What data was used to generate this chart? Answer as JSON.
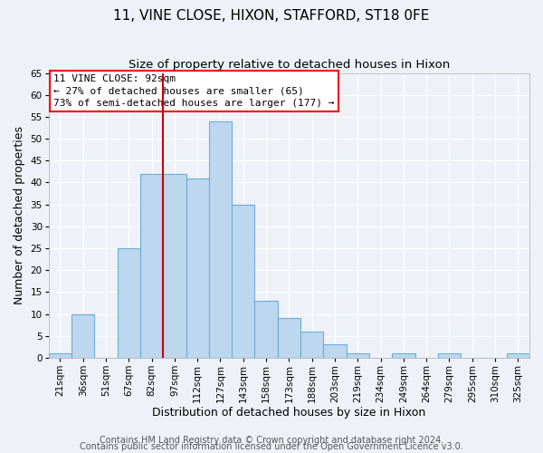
{
  "title": "11, VINE CLOSE, HIXON, STAFFORD, ST18 0FE",
  "subtitle": "Size of property relative to detached houses in Hixon",
  "xlabel": "Distribution of detached houses by size in Hixon",
  "ylabel": "Number of detached properties",
  "bin_labels": [
    "21sqm",
    "36sqm",
    "51sqm",
    "67sqm",
    "82sqm",
    "97sqm",
    "112sqm",
    "127sqm",
    "143sqm",
    "158sqm",
    "173sqm",
    "188sqm",
    "203sqm",
    "219sqm",
    "234sqm",
    "249sqm",
    "264sqm",
    "279sqm",
    "295sqm",
    "310sqm",
    "325sqm"
  ],
  "bin_centers": [
    21,
    36,
    51,
    67,
    82,
    97,
    112,
    127,
    143,
    158,
    173,
    188,
    203,
    219,
    234,
    249,
    264,
    279,
    295,
    310,
    325
  ],
  "bin_width": 15,
  "counts": [
    1,
    10,
    0,
    25,
    42,
    42,
    41,
    54,
    35,
    13,
    9,
    6,
    3,
    1,
    0,
    1,
    0,
    1,
    0,
    0,
    1
  ],
  "bar_color": "#bdd7ee",
  "bar_edge_color": "#6baed6",
  "vline_x": 97,
  "vline_color": "#cc0000",
  "annotation_box_text": "11 VINE CLOSE: 92sqm\n← 27% of detached houses are smaller (65)\n73% of semi-detached houses are larger (177) →",
  "ylim": [
    0,
    65
  ],
  "yticks": [
    0,
    5,
    10,
    15,
    20,
    25,
    30,
    35,
    40,
    45,
    50,
    55,
    60,
    65
  ],
  "footer_line1": "Contains HM Land Registry data © Crown copyright and database right 2024.",
  "footer_line2": "Contains public sector information licensed under the Open Government Licence v3.0.",
  "bg_color": "#eef2f8",
  "plot_bg_color": "#eef2f8",
  "grid_color": "#ffffff",
  "title_fontsize": 11,
  "subtitle_fontsize": 9.5,
  "axis_label_fontsize": 9,
  "tick_fontsize": 7.5,
  "footer_fontsize": 7,
  "annot_fontsize": 8
}
